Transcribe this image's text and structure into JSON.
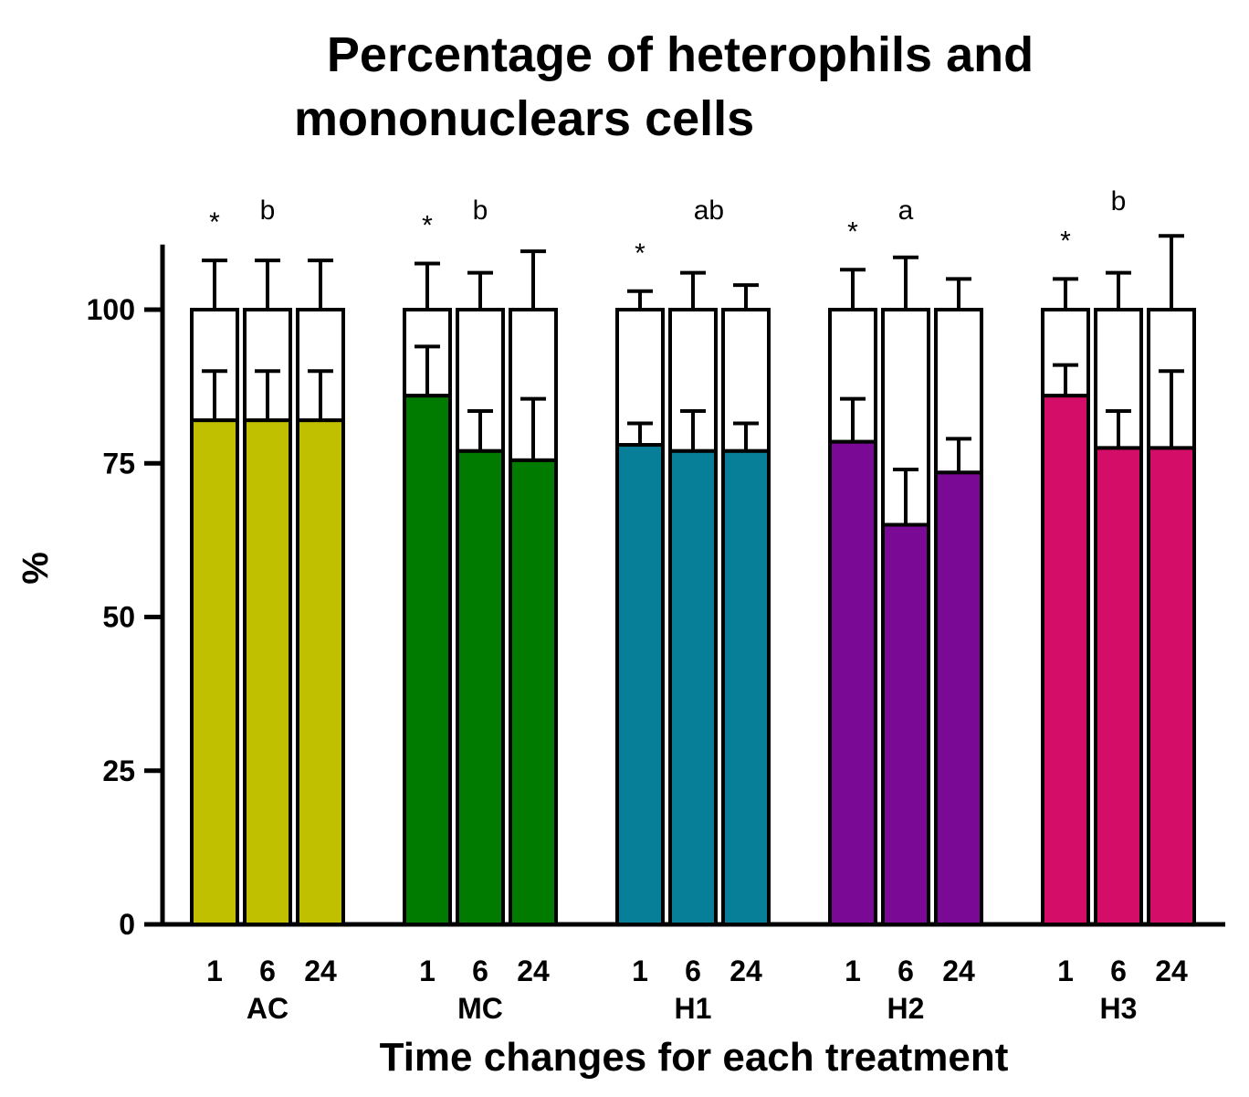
{
  "chart_data": {
    "type": "bar",
    "subtype": "stacked",
    "title_line1": "Percentage of heterophils and",
    "title_line2": "mononuclears cells",
    "xlabel": "Time changes for each treatment",
    "ylabel": "%",
    "ylim": [
      0,
      110
    ],
    "yticks": [
      "0",
      "25",
      "50",
      "75",
      "100"
    ],
    "ytick_values": [
      0,
      25,
      50,
      75,
      100
    ],
    "groups": [
      {
        "name": "AC",
        "color": "#c0c000",
        "letter": "b",
        "bars": [
          {
            "time": "1",
            "heterophils": 82,
            "heterophils_err": 8,
            "total": 100,
            "total_err": 8,
            "mark": "*"
          },
          {
            "time": "6",
            "heterophils": 82,
            "heterophils_err": 8,
            "total": 100,
            "total_err": 8,
            "mark": ""
          },
          {
            "time": "24",
            "heterophils": 82,
            "heterophils_err": 8,
            "total": 100,
            "total_err": 8,
            "mark": ""
          }
        ]
      },
      {
        "name": "MC",
        "color": "#007b00",
        "letter": "b",
        "bars": [
          {
            "time": "1",
            "heterophils": 86,
            "heterophils_err": 8,
            "total": 100,
            "total_err": 7.5,
            "mark": "*"
          },
          {
            "time": "6",
            "heterophils": 77,
            "heterophils_err": 6.5,
            "total": 100,
            "total_err": 6,
            "mark": ""
          },
          {
            "time": "24",
            "heterophils": 75.5,
            "heterophils_err": 10,
            "total": 100,
            "total_err": 9.5,
            "mark": ""
          }
        ]
      },
      {
        "name": "H1",
        "color": "#087f98",
        "letter": "ab",
        "bars": [
          {
            "time": "1",
            "heterophils": 78,
            "heterophils_err": 3.5,
            "total": 100,
            "total_err": 3,
            "mark": "*"
          },
          {
            "time": "6",
            "heterophils": 77,
            "heterophils_err": 6.5,
            "total": 100,
            "total_err": 6,
            "mark": ""
          },
          {
            "time": "24",
            "heterophils": 77,
            "heterophils_err": 4.5,
            "total": 100,
            "total_err": 4,
            "mark": ""
          }
        ]
      },
      {
        "name": "H2",
        "color": "#7a0a96",
        "letter": "a",
        "bars": [
          {
            "time": "1",
            "heterophils": 78.5,
            "heterophils_err": 7,
            "total": 100,
            "total_err": 6.5,
            "mark": "*"
          },
          {
            "time": "6",
            "heterophils": 65,
            "heterophils_err": 9,
            "total": 100,
            "total_err": 8.5,
            "mark": ""
          },
          {
            "time": "24",
            "heterophils": 73.5,
            "heterophils_err": 5.5,
            "total": 100,
            "total_err": 5,
            "mark": ""
          }
        ]
      },
      {
        "name": "H3",
        "color": "#d40d68",
        "letter": "b",
        "bars": [
          {
            "time": "1",
            "heterophils": 86,
            "heterophils_err": 5,
            "total": 100,
            "total_err": 5,
            "mark": "*"
          },
          {
            "time": "6",
            "heterophils": 77.5,
            "heterophils_err": 6,
            "total": 100,
            "total_err": 6,
            "mark": ""
          },
          {
            "time": "24",
            "heterophils": 77.5,
            "heterophils_err": 12.5,
            "total": 100,
            "total_err": 12,
            "mark": ""
          }
        ]
      }
    ]
  }
}
